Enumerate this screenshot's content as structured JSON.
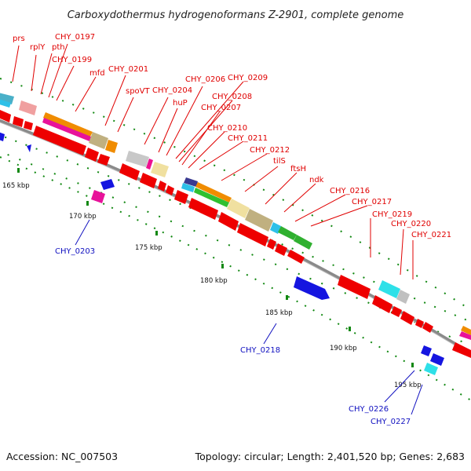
{
  "title": "Carboxydothermus hydrogenoformans Z-2901, complete genome",
  "footer": {
    "accession": "Accession: NC_007503",
    "topology": "Topology: circular; Length: 2,401,520 bp; Genes: 2,683"
  },
  "scale_labels": [
    "165 kbp",
    "170 kbp",
    "175 kbp",
    "180 kbp",
    "185 kbp",
    "190 kbp",
    "195 kbp"
  ],
  "genes_forward": [
    "prs",
    "rplY",
    "pth",
    "CHY_0197",
    "CHY_0199",
    "mfd",
    "CHY_0201",
    "spoVT",
    "CHY_0204",
    "huP",
    "CHY_0206",
    "CHY_0209",
    "CHY_0208",
    "CHY_0207",
    "CHY_0210",
    "CHY_0211",
    "CHY_0212",
    "tilS",
    "ftsH",
    "ndk",
    "CHY_0216",
    "CHY_0217",
    "CHY_0219",
    "CHY_0220",
    "CHY_0221"
  ],
  "genes_reverse": [
    "CHY_0203",
    "CHY_0218",
    "CHY_0226",
    "CHY_0227"
  ],
  "colors": {
    "forward_label": "#e00000",
    "reverse_label": "#1010c0",
    "forward_gene": "#ee0000",
    "reverse_gene": "#1515e0",
    "backbone": "#888888",
    "tick": "#118811"
  }
}
